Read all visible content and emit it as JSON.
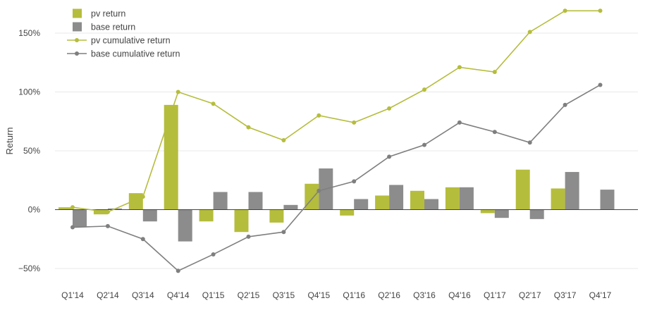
{
  "chart_data": {
    "type": "bar",
    "title": "",
    "xlabel": "",
    "ylabel": "Return",
    "ylim": [
      -0.6,
      1.7
    ],
    "yticks": [
      -0.5,
      0,
      0.5,
      1.0,
      1.5
    ],
    "ytick_labels": [
      "−50%",
      "0%",
      "50%",
      "100%",
      "150%"
    ],
    "grid": true,
    "legend_position": "top-left",
    "categories": [
      "Q1'14",
      "Q2'14",
      "Q3'14",
      "Q4'14",
      "Q1'15",
      "Q2'15",
      "Q3'15",
      "Q4'15",
      "Q1'16",
      "Q2'16",
      "Q3'16",
      "Q4'16",
      "Q1'17",
      "Q2'17",
      "Q3'17",
      "Q4'17"
    ],
    "series": [
      {
        "name": "pv return",
        "type": "bar",
        "color": "#b5bd3c",
        "values": [
          0.02,
          -0.04,
          0.14,
          0.89,
          -0.1,
          -0.19,
          -0.11,
          0.22,
          -0.05,
          0.12,
          0.16,
          0.19,
          -0.03,
          0.34,
          0.18,
          null
        ]
      },
      {
        "name": "base return",
        "type": "bar",
        "color": "#8c8c8c",
        "values": [
          -0.15,
          0.01,
          -0.1,
          -0.27,
          0.15,
          0.15,
          0.04,
          0.35,
          0.09,
          0.21,
          0.09,
          0.19,
          -0.07,
          -0.08,
          0.32,
          0.17
        ]
      },
      {
        "name": "pv cumulative return",
        "type": "line",
        "color": "#b5bd3c",
        "values": [
          0.02,
          -0.02,
          0.11,
          1.0,
          0.9,
          0.7,
          0.59,
          0.8,
          0.74,
          0.86,
          1.02,
          1.21,
          1.17,
          1.51,
          1.69,
          1.69
        ]
      },
      {
        "name": "base cumulative return",
        "type": "line",
        "color": "#7f7f7f",
        "values": [
          -0.15,
          -0.14,
          -0.25,
          -0.52,
          -0.38,
          -0.23,
          -0.19,
          0.16,
          0.24,
          0.45,
          0.55,
          0.74,
          0.66,
          0.57,
          0.89,
          1.06
        ]
      }
    ]
  }
}
